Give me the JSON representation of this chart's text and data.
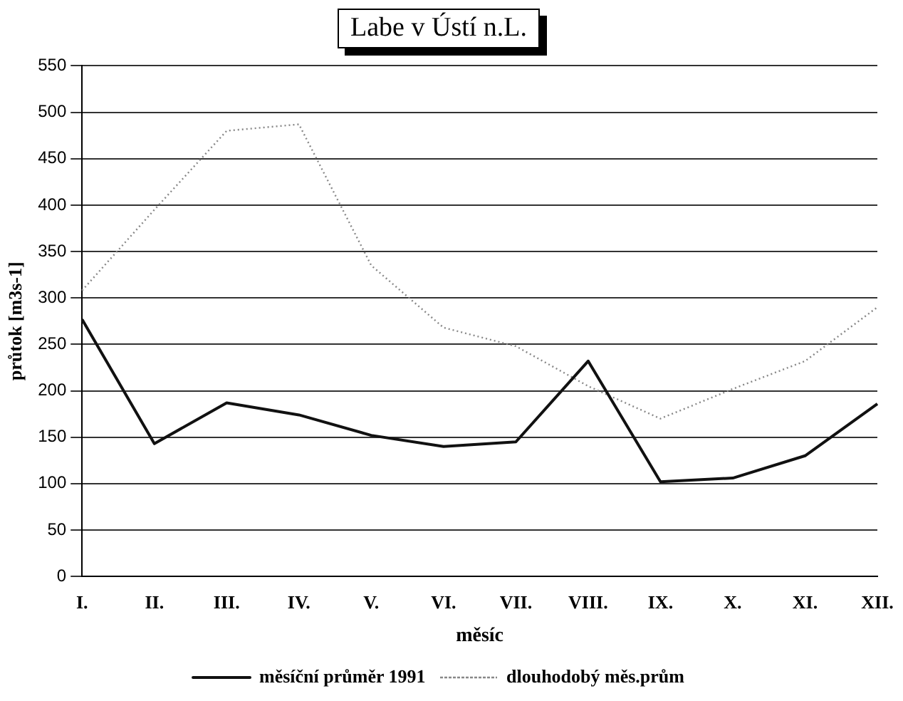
{
  "chart_data": {
    "type": "line",
    "title": "Labe v Ústí n.L.",
    "xlabel": "měsíc",
    "ylabel": "průtok [m3s-1]",
    "categories": [
      "I.",
      "II.",
      "III.",
      "IV.",
      "V.",
      "VI.",
      "VII.",
      "VIII.",
      "IX.",
      "X.",
      "XI.",
      "XII."
    ],
    "series": [
      {
        "name": "měsíční průměr 1991",
        "color": "#111111",
        "line_style": "solid",
        "values": [
          277,
          143,
          187,
          174,
          152,
          140,
          145,
          232,
          102,
          106,
          130,
          186
        ]
      },
      {
        "name": "dlouhodobý měs.prům",
        "color": "#888888",
        "line_style": "dotted",
        "values": [
          308,
          395,
          480,
          487,
          335,
          268,
          248,
          205,
          170,
          202,
          232,
          290
        ]
      }
    ],
    "ylim": [
      0,
      550
    ],
    "yticks": [
      0,
      50,
      100,
      150,
      200,
      250,
      300,
      350,
      400,
      450,
      500,
      550
    ],
    "grid": "y",
    "legend": "bottom",
    "marker": "none"
  }
}
